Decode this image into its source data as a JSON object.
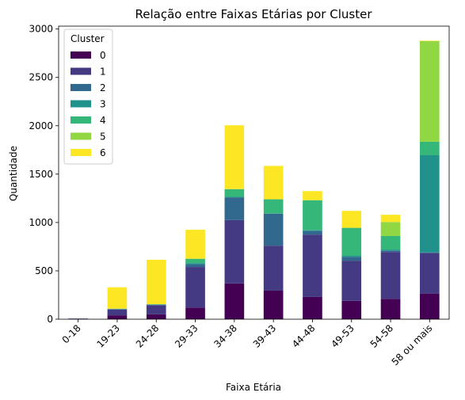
{
  "chart_data": {
    "type": "bar",
    "stacked": true,
    "title": "Relação entre Faixas Etárias por Cluster",
    "xlabel": "Faixa Etária",
    "ylabel": "Quantidade",
    "ylim": [
      0,
      3030
    ],
    "yticks": [
      0,
      500,
      1000,
      1500,
      2000,
      2500,
      3000
    ],
    "categories": [
      "0-18",
      "19-23",
      "24-28",
      "29-33",
      "34-38",
      "39-43",
      "44-48",
      "49-53",
      "54-58",
      "58 ou mais"
    ],
    "legend": {
      "title": "Cluster",
      "placement": "top-left"
    },
    "series": [
      {
        "name": "0",
        "color": "#440154",
        "values": [
          2,
          40,
          50,
          120,
          370,
          295,
          230,
          190,
          210,
          265
        ]
      },
      {
        "name": "1",
        "color": "#443983",
        "values": [
          5,
          60,
          95,
          420,
          655,
          465,
          645,
          415,
          485,
          420
        ]
      },
      {
        "name": "2",
        "color": "#31688e",
        "values": [
          0,
          5,
          5,
          30,
          235,
          330,
          40,
          40,
          15,
          5
        ]
      },
      {
        "name": "3",
        "color": "#21918c",
        "values": [
          0,
          2,
          2,
          10,
          5,
          5,
          5,
          10,
          10,
          1005
        ]
      },
      {
        "name": "4",
        "color": "#35b779",
        "values": [
          0,
          2,
          3,
          45,
          80,
          145,
          310,
          290,
          140,
          140
        ]
      },
      {
        "name": "5",
        "color": "#90d743",
        "values": [
          0,
          0,
          0,
          0,
          0,
          0,
          0,
          0,
          145,
          1040
        ]
      },
      {
        "name": "6",
        "color": "#fde725",
        "values": [
          0,
          221,
          460,
          300,
          660,
          345,
          95,
          175,
          75,
          5
        ]
      }
    ]
  }
}
